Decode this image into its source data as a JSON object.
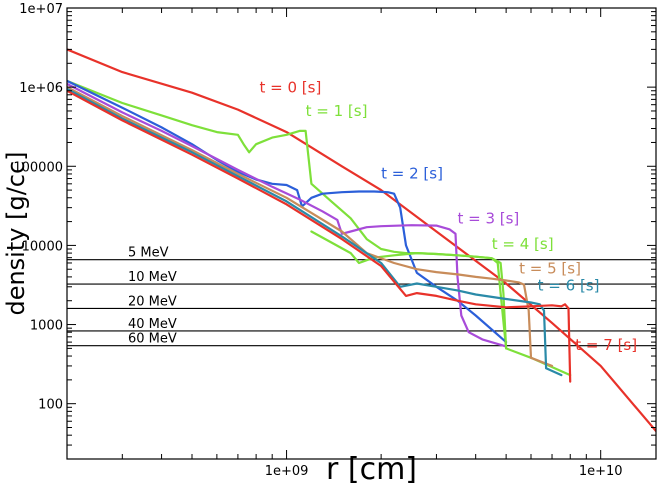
{
  "chart_data": {
    "type": "line",
    "xscale": "log",
    "yscale": "log",
    "xlim": [
      200000000.0,
      15000000000.0
    ],
    "ylim": [
      20,
      10000000.0
    ],
    "xlabel": "r  [cm]",
    "ylabel": "density [g/cc]",
    "xticks": [
      {
        "value": 1000000000.0,
        "label": "1e+09"
      },
      {
        "value": 10000000000.0,
        "label": "1e+10"
      }
    ],
    "yticks": [
      {
        "value": 10000000.0,
        "label": "1e+07"
      },
      {
        "value": 1000000.0,
        "label": "1e+06"
      },
      {
        "value": 100000.0,
        "label": "100000"
      },
      {
        "value": 10000.0,
        "label": "10000"
      },
      {
        "value": 1000.0,
        "label": "1000"
      },
      {
        "value": 100.0,
        "label": "100"
      }
    ],
    "hlines": [
      {
        "value": 6600.0,
        "label": "5 MeV"
      },
      {
        "value": 3250.0,
        "label": "10 MeV"
      },
      {
        "value": 1600.0,
        "label": "20 MeV"
      },
      {
        "value": 830.0,
        "label": "40 MeV"
      },
      {
        "value": 540.0,
        "label": "60 MeV"
      }
    ],
    "series": [
      {
        "name": "t = 0 [s]",
        "color": "#e8322a",
        "x": [
          200000000.0,
          300000000.0,
          500000000.0,
          700000000.0,
          1000000000.0,
          1500000000.0,
          2000000000.0,
          3000000000.0,
          5000000000.0,
          7000000000.0,
          10000000000.0,
          15000000000.0
        ],
        "y": [
          3000000.0,
          1550000.0,
          850000.0,
          520000.0,
          270000.0,
          100000.0,
          50000.0,
          15000.0,
          3300.0,
          1050.0,
          300.0,
          45.0
        ]
      },
      {
        "name": "t = 1 [s]",
        "color": "#7ee03a",
        "x": [
          200000000.0,
          300000000.0,
          400000000.0,
          500000000.0,
          600000000.0,
          700000000.0,
          730000000.0,
          760000000.0,
          800000000.0,
          900000000.0,
          1000000000.0,
          1100000000.0,
          1150000000.0,
          1200000000.0,
          1400000000.0,
          1600000000.0,
          1800000000.0,
          2000000000.0,
          2200000000.0,
          2400000000.0,
          2600000000.0,
          3000000000.0,
          3500000000.0,
          4000000000.0,
          4500000000.0,
          4700000000.0,
          4800000000.0,
          5000000000.0,
          6000000000.0,
          8000000000.0
        ],
        "y": [
          1200000.0,
          630000.0,
          440000.0,
          330000.0,
          270000.0,
          250000.0,
          190000.0,
          150000.0,
          190000.0,
          230000.0,
          250000.0,
          280000.0,
          280000.0,
          60000.0,
          35000.0,
          22000.0,
          12000.0,
          9000.0,
          8300.0,
          8000.0,
          8000.0,
          7800.0,
          7500.0,
          7200.0,
          6900.0,
          6000.0,
          2500.0,
          500.0,
          380.0,
          230.0
        ]
      },
      {
        "name": "t = 2 [s]",
        "color": "#2b5fd9",
        "x": [
          200000000.0,
          300000000.0,
          400000000.0,
          500000000.0,
          600000000.0,
          700000000.0,
          800000000.0,
          900000000.0,
          1000000000.0,
          1080000000.0,
          1120000000.0,
          1200000000.0,
          1300000000.0,
          1500000000.0,
          1700000000.0,
          1900000000.0,
          2100000000.0,
          2200000000.0,
          2300000000.0,
          2400000000.0,
          2600000000.0,
          3000000000.0,
          3500000000.0,
          4000000000.0,
          5000000000.0
        ],
        "y": [
          1200000.0,
          550000.0,
          310000.0,
          190000.0,
          120000.0,
          85000.0,
          68000.0,
          60000.0,
          58000.0,
          50000.0,
          31000.0,
          40000.0,
          45000.0,
          47000.0,
          48000.0,
          48000.0,
          47000.0,
          45000.0,
          30000.0,
          10000.0,
          4500.0,
          3000.0,
          2000.0,
          1300.0,
          600.0
        ]
      },
      {
        "name": "t = 3 [s]",
        "color": "#a84bd9",
        "x": [
          200000000.0,
          300000000.0,
          400000000.0,
          500000000.0,
          700000000.0,
          900000000.0,
          1100000000.0,
          1300000000.0,
          1450000000.0,
          1500000000.0,
          1600000000.0,
          1800000000.0,
          2000000000.0,
          2500000000.0,
          3000000000.0,
          3300000000.0,
          3450000000.0,
          3500000000.0,
          3600000000.0,
          3800000000.0,
          4200000000.0,
          5000000000.0
        ],
        "y": [
          1100000.0,
          480000.0,
          280000.0,
          180000.0,
          90000.0,
          55000.0,
          38000.0,
          27000.0,
          21000.0,
          14000.0,
          15000.0,
          17000.0,
          17500.0,
          18000.0,
          17800.0,
          16000.0,
          14000.0,
          4000.0,
          1300.0,
          800.0,
          650.0,
          530.0
        ]
      },
      {
        "name": "t = 4 [s]",
        "color": "#7ee03a",
        "x": [
          1200000000.0,
          1600000000.0,
          1700000000.0,
          1800000000.0,
          1900000000.0,
          2200000000.0,
          2600000000.0,
          3000000000.0,
          3500000000.0,
          4000000000.0,
          4500000000.0,
          4800000000.0,
          4900000000.0,
          5000000000.0
        ],
        "y": [
          15000.0,
          8000.0,
          6000.0,
          6500.0,
          7000.0,
          7500.0,
          8000.0,
          7800.0,
          7500.0,
          7200.0,
          6900.0,
          6000.0,
          2500.0,
          500.0
        ]
      },
      {
        "name": "t = 5 [s]",
        "color": "#c88c5a",
        "x": [
          200000000.0,
          300000000.0,
          500000000.0,
          700000000.0,
          1000000000.0,
          1500000000.0,
          1800000000.0,
          2200000000.0,
          2600000000.0,
          3000000000.0,
          3500000000.0,
          4000000000.0,
          4500000000.0,
          5000000000.0,
          5500000000.0,
          5700000000.0,
          5900000000.0,
          6000000000.0,
          7000000000.0
        ],
        "y": [
          1000000.0,
          430000.0,
          160000.0,
          80000.0,
          40000.0,
          15000.0,
          8000.0,
          6000.0,
          5000.0,
          4600.0,
          4300.0,
          4000.0,
          3800.0,
          3600.0,
          3400.0,
          3200.0,
          1500.0,
          380.0,
          300.0
        ]
      },
      {
        "name": "t = 6 [s]",
        "color": "#2a8aa8",
        "x": [
          200000000.0,
          300000000.0,
          500000000.0,
          700000000.0,
          1000000000.0,
          1500000000.0,
          2000000000.0,
          2300000000.0,
          2600000000.0,
          3000000000.0,
          3500000000.0,
          4000000000.0,
          5000000000.0,
          6000000000.0,
          6400000000.0,
          6600000000.0,
          6700000000.0,
          7500000000.0
        ],
        "y": [
          950000.0,
          400000.0,
          150000.0,
          75000.0,
          36000.0,
          13000.0,
          6000.0,
          3000.0,
          3300.0,
          3000.0,
          2700.0,
          2400.0,
          2100.0,
          1900.0,
          1800.0,
          1500.0,
          280.0,
          230.0
        ]
      },
      {
        "name": "t = 7 [s]",
        "color": "#e8322a",
        "x": [
          200000000.0,
          300000000.0,
          500000000.0,
          700000000.0,
          1000000000.0,
          1500000000.0,
          2000000000.0,
          2400000000.0,
          2600000000.0,
          3000000000.0,
          3500000000.0,
          4000000000.0,
          5000000000.0,
          6000000000.0,
          7000000000.0,
          7500000000.0,
          7700000000.0,
          7900000000.0,
          8000000000.0
        ],
        "y": [
          900000.0,
          380000.0,
          140000.0,
          70000.0,
          33000.0,
          12000.0,
          5500.0,
          2300.0,
          2500.0,
          2300.0,
          2000.0,
          1800.0,
          1650.0,
          1700.0,
          1750.0,
          1700.0,
          1800.0,
          1600.0,
          190.0
        ]
      }
    ],
    "annotations": [
      {
        "text": "t = 0 [s]",
        "color": "#e8322a",
        "x": 820000000.0,
        "y": 850000.0
      },
      {
        "text": "t = 1 [s]",
        "color": "#7ee03a",
        "x": 1150000000.0,
        "y": 430000.0
      },
      {
        "text": "t = 2 [s]",
        "color": "#2b5fd9",
        "x": 2000000000.0,
        "y": 70000.0
      },
      {
        "text": "t = 3 [s]",
        "color": "#a84bd9",
        "x": 3500000000.0,
        "y": 19000.0
      },
      {
        "text": "t = 4 [s]",
        "color": "#7ee03a",
        "x": 4500000000.0,
        "y": 9000.0
      },
      {
        "text": "t = 5 [s]",
        "color": "#c88c5a",
        "x": 5500000000.0,
        "y": 4400.0
      },
      {
        "text": "t = 6 [s]",
        "color": "#2a8aa8",
        "x": 6300000000.0,
        "y": 2700.0
      },
      {
        "text": "t = 7 [s]",
        "color": "#e8322a",
        "x": 8300000000.0,
        "y": 480.0
      }
    ]
  }
}
